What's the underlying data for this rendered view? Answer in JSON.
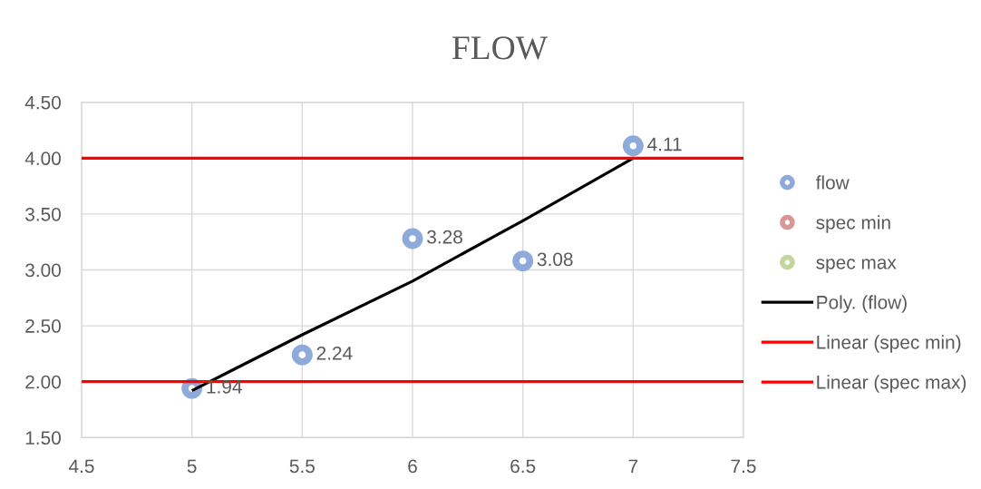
{
  "chart_data": {
    "type": "scatter",
    "title": "FLOW",
    "xlim": [
      4.5,
      7.5
    ],
    "xticks": [
      4.5,
      5,
      5.5,
      6,
      6.5,
      7,
      7.5
    ],
    "ylim": [
      1.5,
      4.5
    ],
    "yticks": [
      {
        "value": 1.5,
        "label": "1.50"
      },
      {
        "value": 2.0,
        "label": "2.00"
      },
      {
        "value": 2.5,
        "label": "2.50"
      },
      {
        "value": 3.0,
        "label": "3.00"
      },
      {
        "value": 3.5,
        "label": "3.50"
      },
      {
        "value": 4.0,
        "label": "4.00"
      },
      {
        "value": 4.5,
        "label": "4.50"
      }
    ],
    "grid": true,
    "legend": "right",
    "marker": "circle",
    "series": [
      {
        "name": "flow",
        "color": "#8eaadb",
        "x": [
          5,
          5.5,
          6,
          6.5,
          7
        ],
        "values": [
          1.94,
          2.24,
          3.28,
          3.08,
          4.11
        ],
        "value_labels": [
          "1.94",
          "2.24",
          "3.28",
          "3.08",
          "4.11"
        ]
      },
      {
        "name": "spec min",
        "color": "#d99694"
      },
      {
        "name": "spec max",
        "color": "#c3d69b"
      },
      {
        "name": "Poly. (flow)",
        "type": "line",
        "color": "#000000",
        "marker": "none",
        "line_style": "solid",
        "x": [
          5,
          5.5,
          6,
          6.5,
          7
        ],
        "values": [
          1.92,
          2.42,
          2.9,
          3.44,
          4.0
        ]
      },
      {
        "name": "Linear (spec min)",
        "type": "line",
        "color": "#ff0000",
        "marker": "none",
        "line_style": "solid",
        "x": [
          4.5,
          7.5
        ],
        "values": [
          2.0,
          2.0
        ]
      },
      {
        "name": "Linear (spec max)",
        "type": "line",
        "color": "#ff0000",
        "marker": "none",
        "line_style": "solid",
        "x": [
          4.5,
          7.5
        ],
        "values": [
          4.0,
          4.0
        ]
      }
    ]
  }
}
